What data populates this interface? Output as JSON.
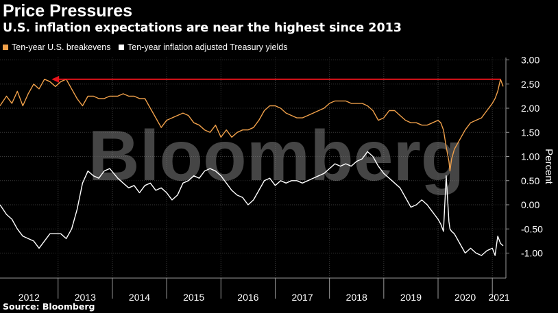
{
  "header": {
    "title": "Price Pressures",
    "subtitle": "U.S. inflation expectations are near the highest since 2013"
  },
  "footer": {
    "source": "Source: Bloomberg"
  },
  "watermark": "Bloomberg",
  "colors": {
    "breakevens": "#f0a04a",
    "yields": "#ffffff",
    "arrow": "#e8131b",
    "grid": "#3a3a3a"
  },
  "chart_data": {
    "type": "line",
    "ylabel": "Percent",
    "ylim": [
      -1.4,
      3.0
    ],
    "yticks": [
      3.0,
      2.5,
      2.0,
      1.5,
      1.0,
      0.5,
      0.0,
      -0.5,
      -1.0
    ],
    "ytick_labels": [
      "3.00",
      "2.50",
      "2.00",
      "1.50",
      "1.00",
      "0.50",
      "0.00",
      "-0.50",
      "-1.00"
    ],
    "xlim": [
      2011.93,
      2021.25
    ],
    "year_labels": [
      "2012",
      "2013",
      "2014",
      "2015",
      "2016",
      "2017",
      "2018",
      "2019",
      "2020",
      "2021"
    ],
    "year_bounds": [
      2013,
      2014,
      2015,
      2016,
      2017,
      2018,
      2019,
      2020,
      2021
    ],
    "grid": true,
    "legend_placement": "top-left",
    "annotation": {
      "type": "arrow",
      "y": 2.6,
      "from_x": 2021.15,
      "to_x": 2012.88
    },
    "series": [
      {
        "name": "Ten-year U.S. breakevens",
        "x": [
          2011.93,
          2012.05,
          2012.15,
          2012.25,
          2012.35,
          2012.45,
          2012.55,
          2012.65,
          2012.75,
          2012.85,
          2012.95,
          2013.05,
          2013.15,
          2013.25,
          2013.35,
          2013.45,
          2013.55,
          2013.65,
          2013.75,
          2013.85,
          2013.95,
          2014.1,
          2014.2,
          2014.3,
          2014.4,
          2014.5,
          2014.6,
          2014.7,
          2014.8,
          2014.9,
          2015.0,
          2015.1,
          2015.2,
          2015.3,
          2015.4,
          2015.5,
          2015.6,
          2015.7,
          2015.8,
          2015.9,
          2016.0,
          2016.1,
          2016.2,
          2016.3,
          2016.4,
          2016.5,
          2016.6,
          2016.7,
          2016.8,
          2016.9,
          2017.0,
          2017.1,
          2017.2,
          2017.3,
          2017.4,
          2017.5,
          2017.6,
          2017.7,
          2017.8,
          2017.9,
          2018.0,
          2018.1,
          2018.2,
          2018.3,
          2018.4,
          2018.5,
          2018.6,
          2018.7,
          2018.8,
          2018.9,
          2019.0,
          2019.1,
          2019.2,
          2019.3,
          2019.4,
          2019.5,
          2019.6,
          2019.7,
          2019.8,
          2019.9,
          2020.0,
          2020.05,
          2020.1,
          2020.15,
          2020.2,
          2020.22,
          2020.25,
          2020.3,
          2020.4,
          2020.5,
          2020.6,
          2020.7,
          2020.8,
          2020.9,
          2021.0,
          2021.05,
          2021.1,
          2021.15,
          2021.2
        ],
        "values": [
          2.05,
          2.25,
          2.1,
          2.35,
          2.05,
          2.3,
          2.5,
          2.4,
          2.6,
          2.55,
          2.45,
          2.55,
          2.6,
          2.4,
          2.2,
          2.05,
          2.25,
          2.25,
          2.2,
          2.2,
          2.25,
          2.25,
          2.3,
          2.25,
          2.25,
          2.2,
          2.2,
          2.0,
          1.8,
          1.6,
          1.75,
          1.8,
          1.85,
          1.9,
          1.85,
          1.7,
          1.65,
          1.55,
          1.5,
          1.65,
          1.4,
          1.55,
          1.4,
          1.5,
          1.55,
          1.55,
          1.6,
          1.75,
          1.95,
          2.05,
          2.05,
          2.0,
          1.9,
          1.85,
          1.8,
          1.8,
          1.85,
          1.9,
          1.95,
          2.0,
          2.1,
          2.15,
          2.15,
          2.15,
          2.1,
          2.1,
          2.1,
          2.05,
          1.95,
          1.75,
          1.8,
          1.95,
          1.95,
          1.85,
          1.75,
          1.7,
          1.7,
          1.65,
          1.65,
          1.7,
          1.75,
          1.7,
          1.55,
          1.2,
          0.9,
          0.7,
          0.95,
          1.15,
          1.35,
          1.55,
          1.7,
          1.75,
          1.8,
          1.95,
          2.1,
          2.2,
          2.35,
          2.6,
          2.45
        ]
      },
      {
        "name": "Ten-year inflation adjusted Treasury yields",
        "x": [
          2011.93,
          2012.05,
          2012.15,
          2012.25,
          2012.35,
          2012.45,
          2012.55,
          2012.65,
          2012.75,
          2012.85,
          2012.95,
          2013.05,
          2013.15,
          2013.25,
          2013.35,
          2013.45,
          2013.55,
          2013.65,
          2013.75,
          2013.85,
          2013.95,
          2014.1,
          2014.2,
          2014.3,
          2014.4,
          2014.5,
          2014.6,
          2014.7,
          2014.8,
          2014.9,
          2015.0,
          2015.1,
          2015.2,
          2015.3,
          2015.4,
          2015.5,
          2015.6,
          2015.7,
          2015.8,
          2015.9,
          2016.0,
          2016.1,
          2016.2,
          2016.3,
          2016.4,
          2016.5,
          2016.6,
          2016.7,
          2016.8,
          2016.9,
          2017.0,
          2017.1,
          2017.2,
          2017.3,
          2017.4,
          2017.5,
          2017.6,
          2017.7,
          2017.8,
          2017.9,
          2018.0,
          2018.1,
          2018.2,
          2018.3,
          2018.4,
          2018.5,
          2018.6,
          2018.7,
          2018.8,
          2018.9,
          2019.0,
          2019.1,
          2019.2,
          2019.3,
          2019.4,
          2019.5,
          2019.6,
          2019.7,
          2019.8,
          2019.9,
          2020.0,
          2020.05,
          2020.1,
          2020.15,
          2020.2,
          2020.22,
          2020.25,
          2020.3,
          2020.4,
          2020.5,
          2020.6,
          2020.7,
          2020.8,
          2020.9,
          2021.0,
          2021.05,
          2021.1,
          2021.15,
          2021.2
        ],
        "values": [
          0.0,
          -0.2,
          -0.3,
          -0.5,
          -0.65,
          -0.7,
          -0.75,
          -0.9,
          -0.75,
          -0.6,
          -0.6,
          -0.6,
          -0.7,
          -0.5,
          -0.1,
          0.45,
          0.7,
          0.6,
          0.55,
          0.7,
          0.75,
          0.55,
          0.45,
          0.35,
          0.4,
          0.25,
          0.4,
          0.45,
          0.3,
          0.35,
          0.25,
          0.1,
          0.2,
          0.45,
          0.5,
          0.6,
          0.55,
          0.7,
          0.75,
          0.7,
          0.6,
          0.45,
          0.3,
          0.2,
          0.15,
          0.0,
          0.1,
          0.3,
          0.5,
          0.55,
          0.4,
          0.5,
          0.45,
          0.5,
          0.5,
          0.45,
          0.5,
          0.55,
          0.6,
          0.65,
          0.75,
          0.85,
          0.8,
          0.85,
          0.8,
          0.9,
          0.95,
          1.1,
          1.0,
          0.8,
          0.65,
          0.55,
          0.45,
          0.35,
          0.15,
          -0.05,
          0.0,
          0.1,
          0.0,
          -0.15,
          -0.3,
          -0.4,
          -0.55,
          0.6,
          -0.35,
          -0.5,
          -0.55,
          -0.6,
          -0.8,
          -1.0,
          -0.9,
          -1.0,
          -1.05,
          -0.95,
          -0.9,
          -1.05,
          -0.65,
          -0.8,
          -0.85
        ]
      }
    ]
  }
}
